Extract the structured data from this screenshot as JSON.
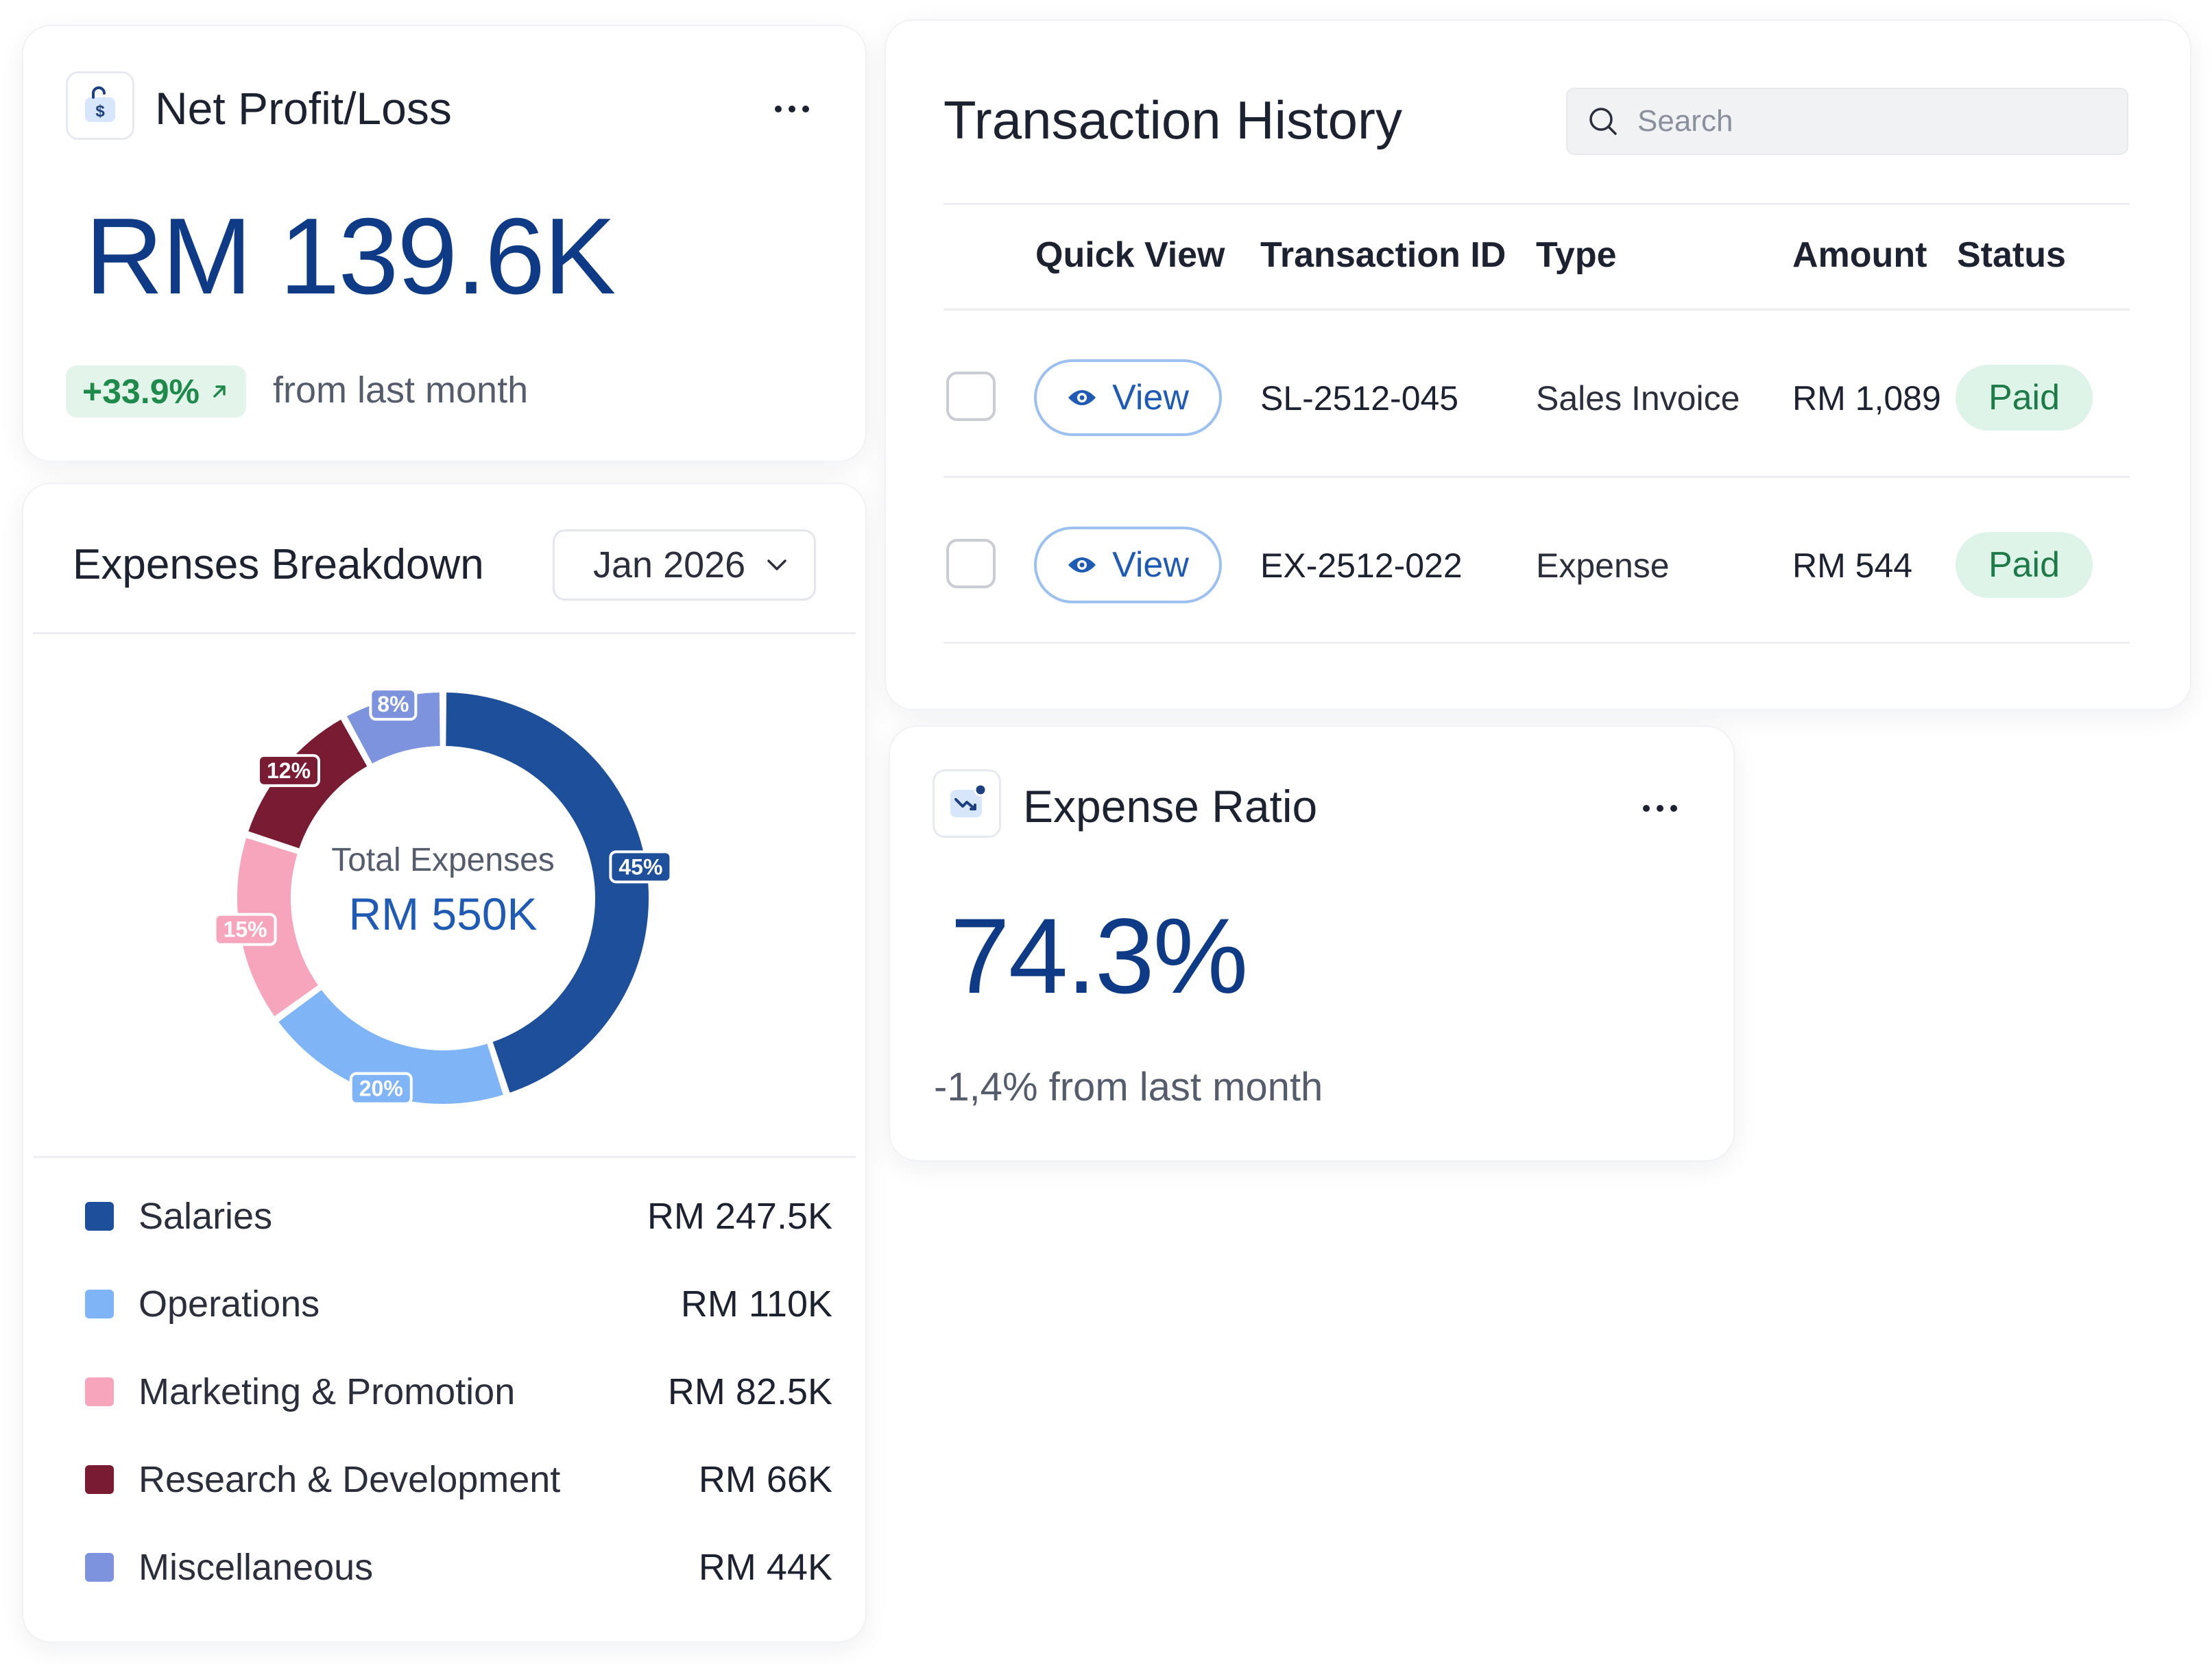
{
  "net_profit": {
    "title": "Net Profit/Loss",
    "value": "RM 139.6K",
    "change": "+33.9%",
    "change_suffix": "from last month",
    "icon": "wallet-dollar-icon"
  },
  "expenses": {
    "title": "Expenses Breakdown",
    "period": "Jan 2026",
    "center_label": "Total Expenses",
    "center_value": "RM 550K",
    "items": [
      {
        "label": "Salaries",
        "value": "RM 247.5K",
        "percent": 45,
        "percent_label": "45%",
        "color": "#1d4f9a"
      },
      {
        "label": "Operations",
        "value": "RM 110K",
        "percent": 20,
        "percent_label": "20%",
        "color": "#7fb4f7"
      },
      {
        "label": "Marketing & Promotion",
        "value": "RM 82.5K",
        "percent": 15,
        "percent_label": "15%",
        "color": "#f7a5bd"
      },
      {
        "label": "Research & Development",
        "value": "RM 66K",
        "percent": 12,
        "percent_label": "12%",
        "color": "#7a1b34"
      },
      {
        "label": "Miscellaneous",
        "value": "RM 44K",
        "percent": 8,
        "percent_label": "8%",
        "color": "#7d93dd"
      }
    ]
  },
  "chart_data": {
    "type": "pie",
    "categories": [
      "Salaries",
      "Operations",
      "Marketing & Promotion",
      "Research & Development",
      "Miscellaneous"
    ],
    "values": [
      45,
      20,
      15,
      12,
      8
    ],
    "title": "Expenses Breakdown"
  },
  "transactions": {
    "title": "Transaction History",
    "search_placeholder": "Search",
    "columns": [
      "Quick View",
      "Transaction ID",
      "Type",
      "Amount",
      "Status"
    ],
    "view_label": "View",
    "rows": [
      {
        "id": "SL-2512-045",
        "type": "Sales Invoice",
        "amount": "RM 1,089",
        "status": "Paid"
      },
      {
        "id": "EX-2512-022",
        "type": "Expense",
        "amount": "RM 544",
        "status": "Paid"
      }
    ],
    "status_color": "#dff4e8"
  },
  "expense_ratio": {
    "title": "Expense Ratio",
    "value": "74.3%",
    "change_text": "-1,4% from last month",
    "icon": "trend-down-chart-icon"
  },
  "colors": {
    "accent": "#0f3b86",
    "positive": "#1f8a4c"
  }
}
